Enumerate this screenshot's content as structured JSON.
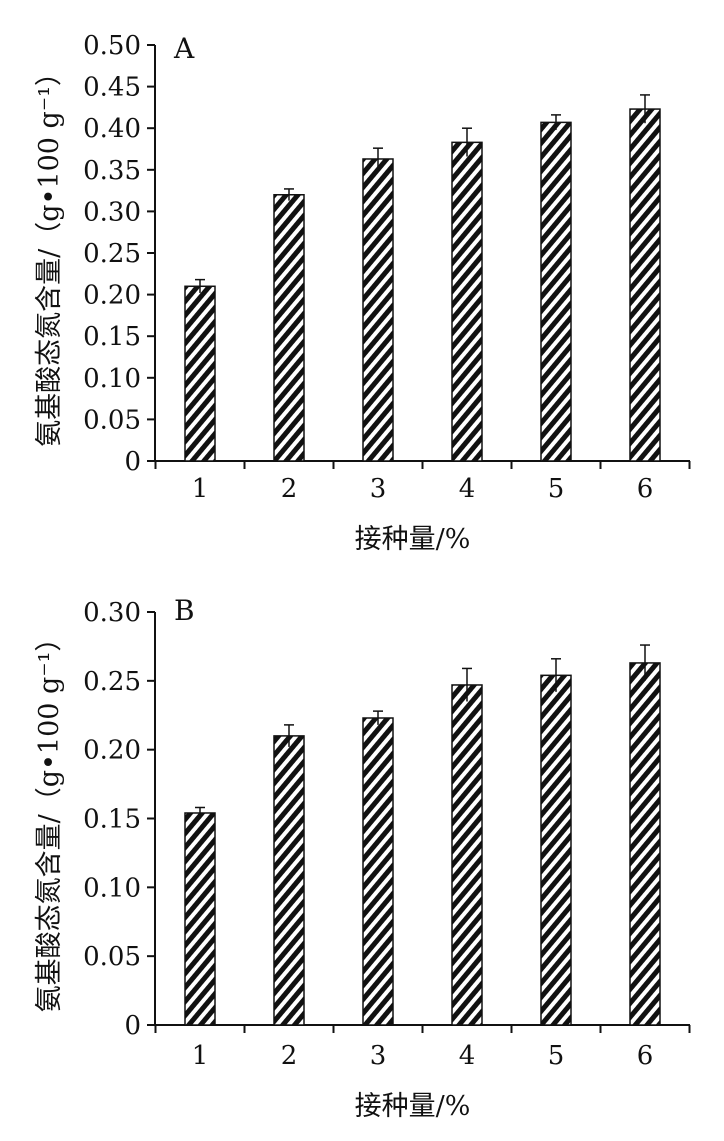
{
  "chart_data": [
    {
      "type": "bar",
      "panel_label": "A",
      "categories": [
        "1",
        "2",
        "3",
        "4",
        "5",
        "6"
      ],
      "values": [
        0.21,
        0.32,
        0.363,
        0.383,
        0.407,
        0.423
      ],
      "errors": [
        0.008,
        0.007,
        0.013,
        0.017,
        0.009,
        0.017
      ],
      "xlabel": "接种量/%",
      "ylabel": "氨基酸态氮含量/（g•100 g⁻¹）",
      "ylim": [
        0,
        0.5
      ],
      "yticks": [
        0,
        0.05,
        0.1,
        0.15,
        0.2,
        0.25,
        0.3,
        0.35,
        0.4,
        0.45,
        0.5
      ],
      "ytick_labels": [
        "0",
        "0.05",
        "0.10",
        "0.15",
        "0.20",
        "0.25",
        "0.30",
        "0.35",
        "0.40",
        "0.45",
        "0.50"
      ],
      "bar_fill": "diagonal hatch",
      "grid": false
    },
    {
      "type": "bar",
      "panel_label": "B",
      "categories": [
        "1",
        "2",
        "3",
        "4",
        "5",
        "6"
      ],
      "values": [
        0.154,
        0.21,
        0.223,
        0.247,
        0.254,
        0.263
      ],
      "errors": [
        0.004,
        0.008,
        0.005,
        0.012,
        0.012,
        0.013
      ],
      "xlabel": "接种量/%",
      "ylabel": "氨基酸态氮含量/（g•100 g⁻¹）",
      "ylim": [
        0,
        0.3
      ],
      "yticks": [
        0,
        0.05,
        0.1,
        0.15,
        0.2,
        0.25,
        0.3
      ],
      "ytick_labels": [
        "0",
        "0.05",
        "0.10",
        "0.15",
        "0.20",
        "0.25",
        "0.30"
      ],
      "bar_fill": "diagonal hatch",
      "grid": false
    }
  ]
}
